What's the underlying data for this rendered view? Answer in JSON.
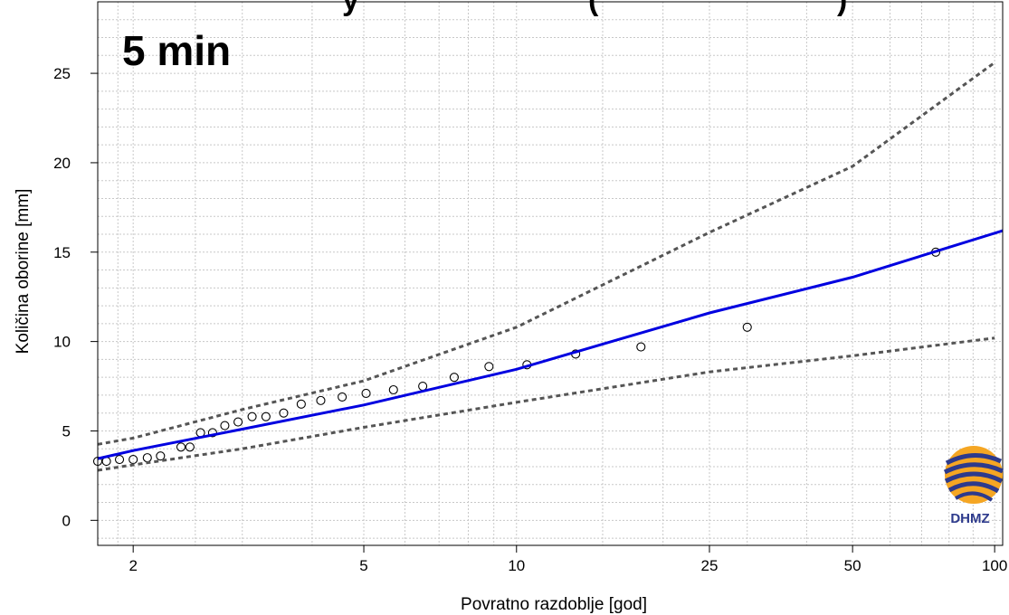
{
  "chart_data": {
    "type": "scatter",
    "title_fragment_left": "y",
    "title_fragment_right": "(",
    "title_fragment_end": ")",
    "panel_label": "5 min",
    "xlabel": "Povratno razdoblje [god]",
    "ylabel": "Količina oborine [mm]",
    "x_scale": "gumbel-reduced-variate",
    "x_ticks": [
      2,
      5,
      10,
      25,
      50,
      100
    ],
    "y_ticks": [
      0,
      5,
      10,
      15,
      20,
      25
    ],
    "ylim": [
      -1.4,
      29
    ],
    "xlim": [
      1.78,
      104
    ],
    "grid": true,
    "legend": "none",
    "series": [
      {
        "kind": "points",
        "color": "#000000",
        "x": [
          1.78,
          1.83,
          1.91,
          2.0,
          2.1,
          2.2,
          2.37,
          2.45,
          2.55,
          2.67,
          2.8,
          2.95,
          3.12,
          3.3,
          3.55,
          3.82,
          4.15,
          4.55,
          5.05,
          5.7,
          6.5,
          7.5,
          8.8,
          10.5,
          13.2,
          18.0,
          30.0,
          75.0
        ],
        "y": [
          3.3,
          3.3,
          3.4,
          3.4,
          3.5,
          3.6,
          4.1,
          4.1,
          4.9,
          4.9,
          5.3,
          5.5,
          5.8,
          5.8,
          6.0,
          6.5,
          6.7,
          6.9,
          7.1,
          7.3,
          7.5,
          8.0,
          8.6,
          8.7,
          9.3,
          9.7,
          10.8,
          15.0
        ]
      },
      {
        "kind": "fit",
        "color": "#0000e0",
        "x": [
          1.78,
          2,
          3,
          5,
          10,
          25,
          50,
          104
        ],
        "y": [
          3.45,
          3.9,
          5.1,
          6.45,
          8.45,
          11.6,
          13.6,
          16.2
        ]
      },
      {
        "kind": "upper-ci",
        "color": "#555555",
        "x": [
          1.78,
          2,
          3,
          5,
          10,
          25,
          50,
          100
        ],
        "y": [
          4.25,
          4.6,
          6.2,
          7.8,
          10.8,
          16.1,
          19.8,
          25.6
        ]
      },
      {
        "kind": "lower-ci",
        "color": "#555555",
        "x": [
          1.78,
          2,
          3,
          5,
          10,
          25,
          50,
          100
        ],
        "y": [
          2.8,
          3.1,
          4.0,
          5.2,
          6.6,
          8.3,
          9.2,
          10.2
        ]
      }
    ]
  },
  "logo": {
    "text": "DHMZ",
    "colors": [
      "#2d3a8c",
      "#f5a623"
    ]
  }
}
